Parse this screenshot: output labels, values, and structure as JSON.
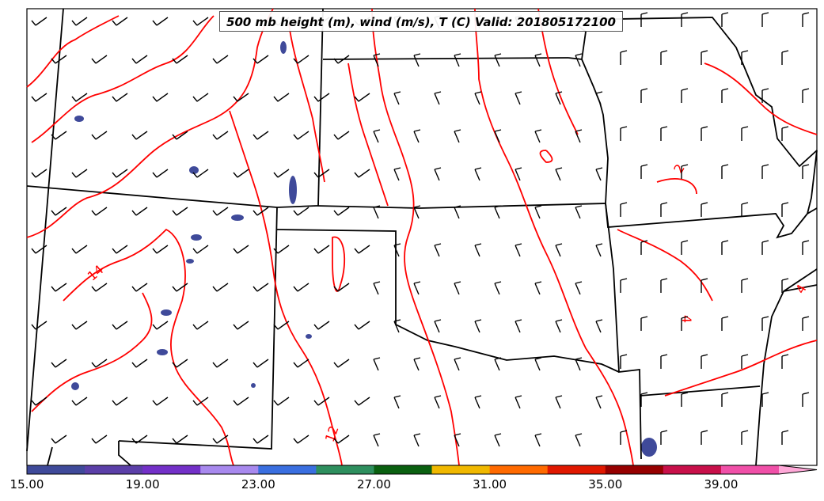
{
  "title": "500 mb height (m), wind (m/s), T (C) Valid: 201805172100",
  "colorbar": {
    "ticks": [
      "15.00",
      "19.00",
      "23.00",
      "27.00",
      "31.00",
      "35.00",
      "39.00"
    ],
    "colors": [
      "#3f4a9a",
      "#5b3fa8",
      "#7330c8",
      "#a889ee",
      "#3a6fe0",
      "#2e8f5e",
      "#0a6010",
      "#f0b800",
      "#ff6a00",
      "#e01800",
      "#960000",
      "#c8104a",
      "#f050a8",
      "#ffa8d8"
    ]
  },
  "contour_labels": [
    "14",
    "12",
    "2",
    "4",
    "4"
  ],
  "colors": {
    "contour": "#ff0000",
    "borders": "#000000",
    "wind_shading": "#3f4a9a"
  }
}
